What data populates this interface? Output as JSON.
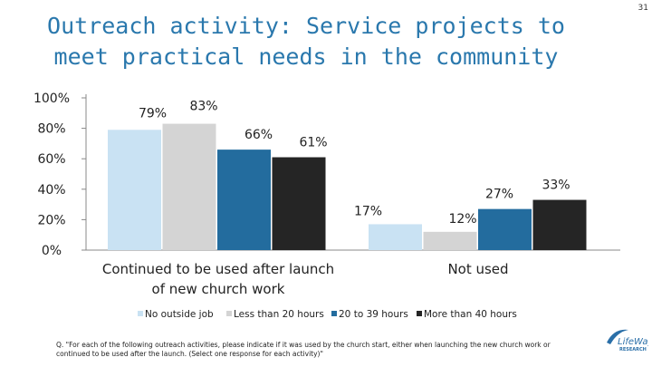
{
  "page_number": "31",
  "title_line1": "Outreach activity: Service projects to",
  "title_line2": "meet practical needs in the community",
  "footnote": "Q. \"For each of the following outreach activities, please indicate if it was used by the church start, either when launching the new church work or continued to be used after the launch. (Select one response for each activity)\"",
  "logo": {
    "line1": "LifeWay",
    "line2": "RESEARCH",
    "color": "#2a6fa8"
  },
  "chart_data": {
    "type": "bar",
    "title": "Outreach activity: Service projects to meet practical needs in the community",
    "categories": [
      "Continued to be used after launch of new church work",
      "Not used"
    ],
    "category_lines": [
      [
        "Continued to be used after launch",
        "of new church work"
      ],
      [
        "Not used"
      ]
    ],
    "series": [
      {
        "name": "No outside job",
        "values": [
          79,
          17
        ],
        "labels": [
          "79%",
          "17%"
        ],
        "color": "#c9e2f3"
      },
      {
        "name": "Less than 20 hours",
        "values": [
          83,
          12
        ],
        "labels": [
          "83%",
          "12%"
        ],
        "color": "#d4d4d4"
      },
      {
        "name": "20 to 39 hours",
        "values": [
          66,
          27
        ],
        "labels": [
          "66%",
          "27%"
        ],
        "color": "#236c9e"
      },
      {
        "name": "More than 40 hours",
        "values": [
          61,
          33
        ],
        "labels": [
          "61%",
          "33%"
        ],
        "color": "#252525"
      }
    ],
    "yticks": [
      0,
      20,
      40,
      60,
      80,
      100
    ],
    "ytick_labels": [
      "0%",
      "20%",
      "40%",
      "60%",
      "80%",
      "100%"
    ],
    "ylim": [
      0,
      100
    ],
    "legend_position": "bottom",
    "grid": false
  }
}
